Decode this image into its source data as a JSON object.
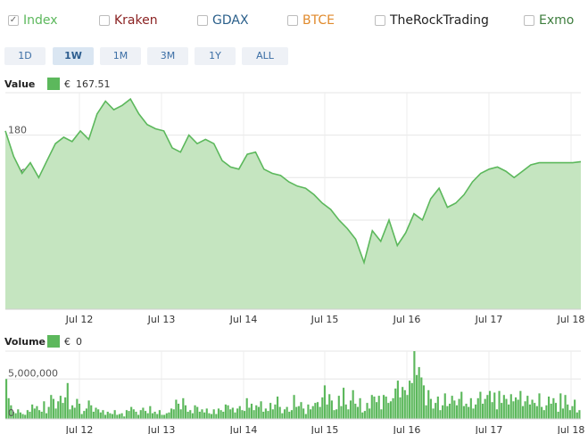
{
  "exchanges": [
    {
      "name": "Index",
      "checked": true,
      "color": "#5cb85c"
    },
    {
      "name": "Kraken",
      "checked": false,
      "color": "#8b2323"
    },
    {
      "name": "GDAX",
      "checked": false,
      "color": "#2a5f8a"
    },
    {
      "name": "BTCE",
      "checked": false,
      "color": "#e08a2c"
    },
    {
      "name": "TheRockTrading",
      "checked": false,
      "color": "#222222"
    },
    {
      "name": "Exmo",
      "checked": false,
      "color": "#3d7d3d"
    }
  ],
  "range_buttons": [
    "1D",
    "1W",
    "1M",
    "3M",
    "1Y",
    "ALL"
  ],
  "active_range": "1W",
  "value_legend": {
    "label": "Value",
    "currency": "€",
    "amount": "167.51"
  },
  "volume_legend": {
    "label": "Volume",
    "currency": "€",
    "amount": "0"
  },
  "chart_data": [
    {
      "type": "area",
      "title": "",
      "ylabel": "Value",
      "ylim": [
        98,
        200
      ],
      "y_ticks": [
        100,
        120,
        140,
        160,
        180
      ],
      "x_tick_labels": [
        "Jul 12",
        "Jul 13",
        "Jul 14",
        "Jul 15",
        "Jul 16",
        "Jul 17",
        "Jul 18"
      ],
      "x_range_days": [
        11.0,
        17.9
      ],
      "grid": true,
      "color": "#5cb85c",
      "x": [
        11.0,
        11.1,
        11.2,
        11.3,
        11.4,
        11.5,
        11.6,
        11.7,
        11.8,
        11.9,
        12.0,
        12.1,
        12.2,
        12.3,
        12.4,
        12.5,
        12.6,
        12.7,
        12.8,
        12.9,
        13.0,
        13.1,
        13.2,
        13.3,
        13.4,
        13.5,
        13.6,
        13.7,
        13.8,
        13.9,
        14.0,
        14.1,
        14.2,
        14.3,
        14.4,
        14.5,
        14.6,
        14.7,
        14.8,
        14.9,
        15.0,
        15.1,
        15.2,
        15.3,
        15.4,
        15.5,
        15.6,
        15.7,
        15.8,
        15.9,
        16.0,
        16.1,
        16.2,
        16.3,
        16.4,
        16.5,
        16.6,
        16.7,
        16.8,
        16.9,
        17.0,
        17.1,
        17.2,
        17.3,
        17.4,
        17.5,
        17.6,
        17.7,
        17.8,
        17.9
      ],
      "y": [
        182,
        170,
        162,
        167,
        160,
        168,
        176,
        179,
        177,
        182,
        178,
        190,
        196,
        192,
        194,
        197,
        190,
        185,
        183,
        182,
        174,
        172,
        180,
        176,
        178,
        176,
        168,
        165,
        164,
        171,
        172,
        164,
        162,
        161,
        158,
        156,
        155,
        152,
        148,
        145,
        140,
        136,
        131,
        120,
        135,
        130,
        140,
        128,
        134,
        143,
        140,
        150,
        155,
        146,
        148,
        152,
        158,
        162,
        164,
        165,
        163,
        160,
        163,
        166,
        167,
        167,
        167,
        167,
        167,
        167.5
      ],
      "series": [
        {
          "name": "Index"
        }
      ]
    },
    {
      "type": "bar",
      "title": "",
      "ylabel": "Volume",
      "ylim": [
        0,
        8500000
      ],
      "y_ticks": [
        0,
        5000000
      ],
      "y_tick_labels": [
        "0",
        "5,000,000"
      ],
      "x_tick_labels": [
        "Jul 12",
        "Jul 13",
        "Jul 14",
        "Jul 15",
        "Jul 16",
        "Jul 17",
        "Jul 18"
      ],
      "grid": true,
      "color": "#5cb85c",
      "values": [
        5000000,
        2600000,
        1700000,
        900000,
        700000,
        1200000,
        800000,
        600000,
        500000,
        1100000,
        900000,
        1800000,
        1300000,
        1600000,
        1100000,
        900000,
        2200000,
        700000,
        1500000,
        3000000,
        2500000,
        1300000,
        2200000,
        2900000,
        2000000,
        2700000,
        4500000,
        1200000,
        1700000,
        1400000,
        2500000,
        1900000,
        600000,
        1000000,
        1300000,
        2300000,
        1700000,
        900000,
        1400000,
        1200000,
        800000,
        1100000,
        500000,
        900000,
        700000,
        600000,
        1100000,
        500000,
        600000,
        700000,
        300000,
        1100000,
        1000000,
        1500000,
        1200000,
        900000,
        500000,
        1100000,
        1400000,
        1000000,
        700000,
        1600000,
        700000,
        900000,
        600000,
        1100000,
        500000,
        500000,
        700000,
        800000,
        1300000,
        1200000,
        2400000,
        1900000,
        1200000,
        2600000,
        1700000,
        900000,
        1100000,
        700000,
        1700000,
        1500000,
        900000,
        1200000,
        800000,
        1300000,
        700000,
        600000,
        1200000,
        600000,
        1300000,
        1100000,
        900000,
        1800000,
        1700000,
        1200000,
        1400000,
        800000,
        1300000,
        1600000,
        1100000,
        1000000,
        2600000,
        1400000,
        1900000,
        1100000,
        1700000,
        1500000,
        2200000,
        900000,
        1300000,
        1000000,
        2000000,
        1200000,
        1800000,
        2800000,
        1500000,
        700000,
        1200000,
        1500000,
        900000,
        1100000,
        3000000,
        1500000,
        1600000,
        2100000,
        1300000,
        600000,
        1800000,
        1200000,
        1600000,
        2000000,
        2100000,
        1500000,
        2700000,
        4200000,
        1800000,
        3100000,
        2300000,
        1100000,
        1200000,
        2900000,
        1600000,
        3900000,
        1800000,
        1200000,
        2300000,
        3600000,
        1900000,
        1500000,
        2600000,
        800000,
        1000000,
        2000000,
        1300000,
        3000000,
        2800000,
        2100000,
        2900000,
        1200000,
        3000000,
        2800000,
        2000000,
        2200000,
        2600000,
        3800000,
        4800000,
        2700000,
        4000000,
        3600000,
        3000000,
        4800000,
        4500000,
        8500000,
        5500000,
        6500000,
        5200000,
        4200000,
        1700000,
        3600000,
        2500000,
        1300000,
        2000000,
        2800000,
        1100000,
        1700000,
        3200000,
        1600000,
        1900000,
        2900000,
        2300000,
        1700000,
        2500000,
        3400000,
        1600000,
        1900000,
        1500000,
        2600000,
        1300000,
        1800000,
        2600000,
        3400000,
        1900000,
        2500000,
        3000000,
        3500000,
        2100000,
        3300000,
        1200000,
        3500000,
        2000000,
        3000000,
        2500000,
        1800000,
        3100000,
        2200000,
        2700000,
        2400000,
        3500000,
        1600000,
        2200000,
        2900000,
        1800000,
        2400000,
        2000000,
        1600000,
        3200000,
        1500000,
        1100000,
        1700000,
        2800000,
        1900000,
        2600000,
        2000000,
        900000,
        3200000,
        1300000,
        3000000,
        1800000,
        1100000,
        1600000,
        2400000,
        800000,
        1100000
      ]
    }
  ]
}
